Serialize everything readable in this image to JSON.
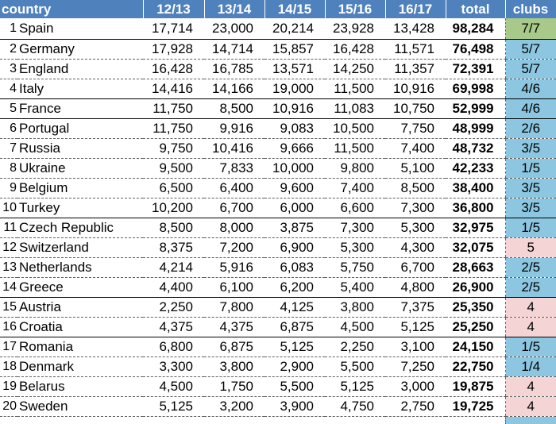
{
  "table": {
    "headers": {
      "country": "country",
      "y1": "12/13",
      "y2": "13/14",
      "y3": "14/15",
      "y4": "15/16",
      "y5": "16/17",
      "total": "total",
      "clubs": "clubs"
    },
    "rows": [
      {
        "rank": "1",
        "country": "Spain",
        "y1": "17,714",
        "y2": "23,000",
        "y3": "20,214",
        "y4": "23,928",
        "y5": "13,428",
        "total": "98,284",
        "clubs": "7/7",
        "clubs_color": "green"
      },
      {
        "rank": "2",
        "country": "Germany",
        "y1": "17,928",
        "y2": "14,714",
        "y3": "15,857",
        "y4": "16,428",
        "y5": "11,571",
        "total": "76,498",
        "clubs": "5/7",
        "clubs_color": "blue"
      },
      {
        "rank": "3",
        "country": "England",
        "y1": "16,428",
        "y2": "16,785",
        "y3": "13,571",
        "y4": "14,250",
        "y5": "11,357",
        "total": "72,391",
        "clubs": "5/7",
        "clubs_color": "blue"
      },
      {
        "rank": "4",
        "country": "Italy",
        "y1": "14,416",
        "y2": "14,166",
        "y3": "19,000",
        "y4": "11,500",
        "y5": "10,916",
        "total": "69,998",
        "clubs": "4/6",
        "clubs_color": "blue"
      },
      {
        "rank": "5",
        "country": "France",
        "y1": "11,750",
        "y2": "8,500",
        "y3": "10,916",
        "y4": "11,083",
        "y5": "10,750",
        "total": "52,999",
        "clubs": "4/6",
        "clubs_color": "blue"
      },
      {
        "rank": "6",
        "country": "Portugal",
        "y1": "11,750",
        "y2": "9,916",
        "y3": "9,083",
        "y4": "10,500",
        "y5": "7,750",
        "total": "48,999",
        "clubs": "2/6",
        "clubs_color": "blue"
      },
      {
        "rank": "7",
        "country": "Russia",
        "y1": "9,750",
        "y2": "10,416",
        "y3": "9,666",
        "y4": "11,500",
        "y5": "7,400",
        "total": "48,732",
        "clubs": "3/5",
        "clubs_color": "blue"
      },
      {
        "rank": "8",
        "country": "Ukraine",
        "y1": "9,500",
        "y2": "7,833",
        "y3": "10,000",
        "y4": "9,800",
        "y5": "5,100",
        "total": "42,233",
        "clubs": "1/5",
        "clubs_color": "blue"
      },
      {
        "rank": "9",
        "country": "Belgium",
        "y1": "6,500",
        "y2": "6,400",
        "y3": "9,600",
        "y4": "7,400",
        "y5": "8,500",
        "total": "38,400",
        "clubs": "3/5",
        "clubs_color": "blue"
      },
      {
        "rank": "10",
        "country": "Turkey",
        "y1": "10,200",
        "y2": "6,700",
        "y3": "6,000",
        "y4": "6,600",
        "y5": "7,300",
        "total": "36,800",
        "clubs": "3/5",
        "clubs_color": "blue"
      },
      {
        "rank": "11",
        "country": "Czech Republic",
        "y1": "8,500",
        "y2": "8,000",
        "y3": "3,875",
        "y4": "7,300",
        "y5": "5,300",
        "total": "32,975",
        "clubs": "1/5",
        "clubs_color": "blue"
      },
      {
        "rank": "12",
        "country": "Switzerland",
        "y1": "8,375",
        "y2": "7,200",
        "y3": "6,900",
        "y4": "5,300",
        "y5": "4,300",
        "total": "32,075",
        "clubs": "5",
        "clubs_color": "pink"
      },
      {
        "rank": "13",
        "country": "Netherlands",
        "y1": "4,214",
        "y2": "5,916",
        "y3": "6,083",
        "y4": "5,750",
        "y5": "6,700",
        "total": "28,663",
        "clubs": "2/5",
        "clubs_color": "blue"
      },
      {
        "rank": "14",
        "country": "Greece",
        "y1": "4,400",
        "y2": "6,100",
        "y3": "6,200",
        "y4": "5,400",
        "y5": "4,800",
        "total": "26,900",
        "clubs": "2/5",
        "clubs_color": "blue"
      },
      {
        "rank": "15",
        "country": "Austria",
        "y1": "2,250",
        "y2": "7,800",
        "y3": "4,125",
        "y4": "3,800",
        "y5": "7,375",
        "total": "25,350",
        "clubs": "4",
        "clubs_color": "pink"
      },
      {
        "rank": "16",
        "country": "Croatia",
        "y1": "4,375",
        "y2": "4,375",
        "y3": "6,875",
        "y4": "4,500",
        "y5": "5,125",
        "total": "25,250",
        "clubs": "4",
        "clubs_color": "pink"
      },
      {
        "rank": "17",
        "country": "Romania",
        "y1": "6,800",
        "y2": "6,875",
        "y3": "5,125",
        "y4": "2,250",
        "y5": "3,100",
        "total": "24,150",
        "clubs": "1/5",
        "clubs_color": "blue"
      },
      {
        "rank": "18",
        "country": "Denmark",
        "y1": "3,300",
        "y2": "3,800",
        "y3": "2,900",
        "y4": "5,500",
        "y5": "7,250",
        "total": "22,750",
        "clubs": "1/4",
        "clubs_color": "blue"
      },
      {
        "rank": "19",
        "country": "Belarus",
        "y1": "4,500",
        "y2": "1,750",
        "y3": "5,500",
        "y4": "5,125",
        "y5": "3,000",
        "total": "19,875",
        "clubs": "4",
        "clubs_color": "pink"
      },
      {
        "rank": "20",
        "country": "Sweden",
        "y1": "5,125",
        "y2": "3,200",
        "y3": "3,900",
        "y4": "4,750",
        "y5": "2,750",
        "total": "19,725",
        "clubs": "4",
        "clubs_color": "pink"
      }
    ]
  }
}
